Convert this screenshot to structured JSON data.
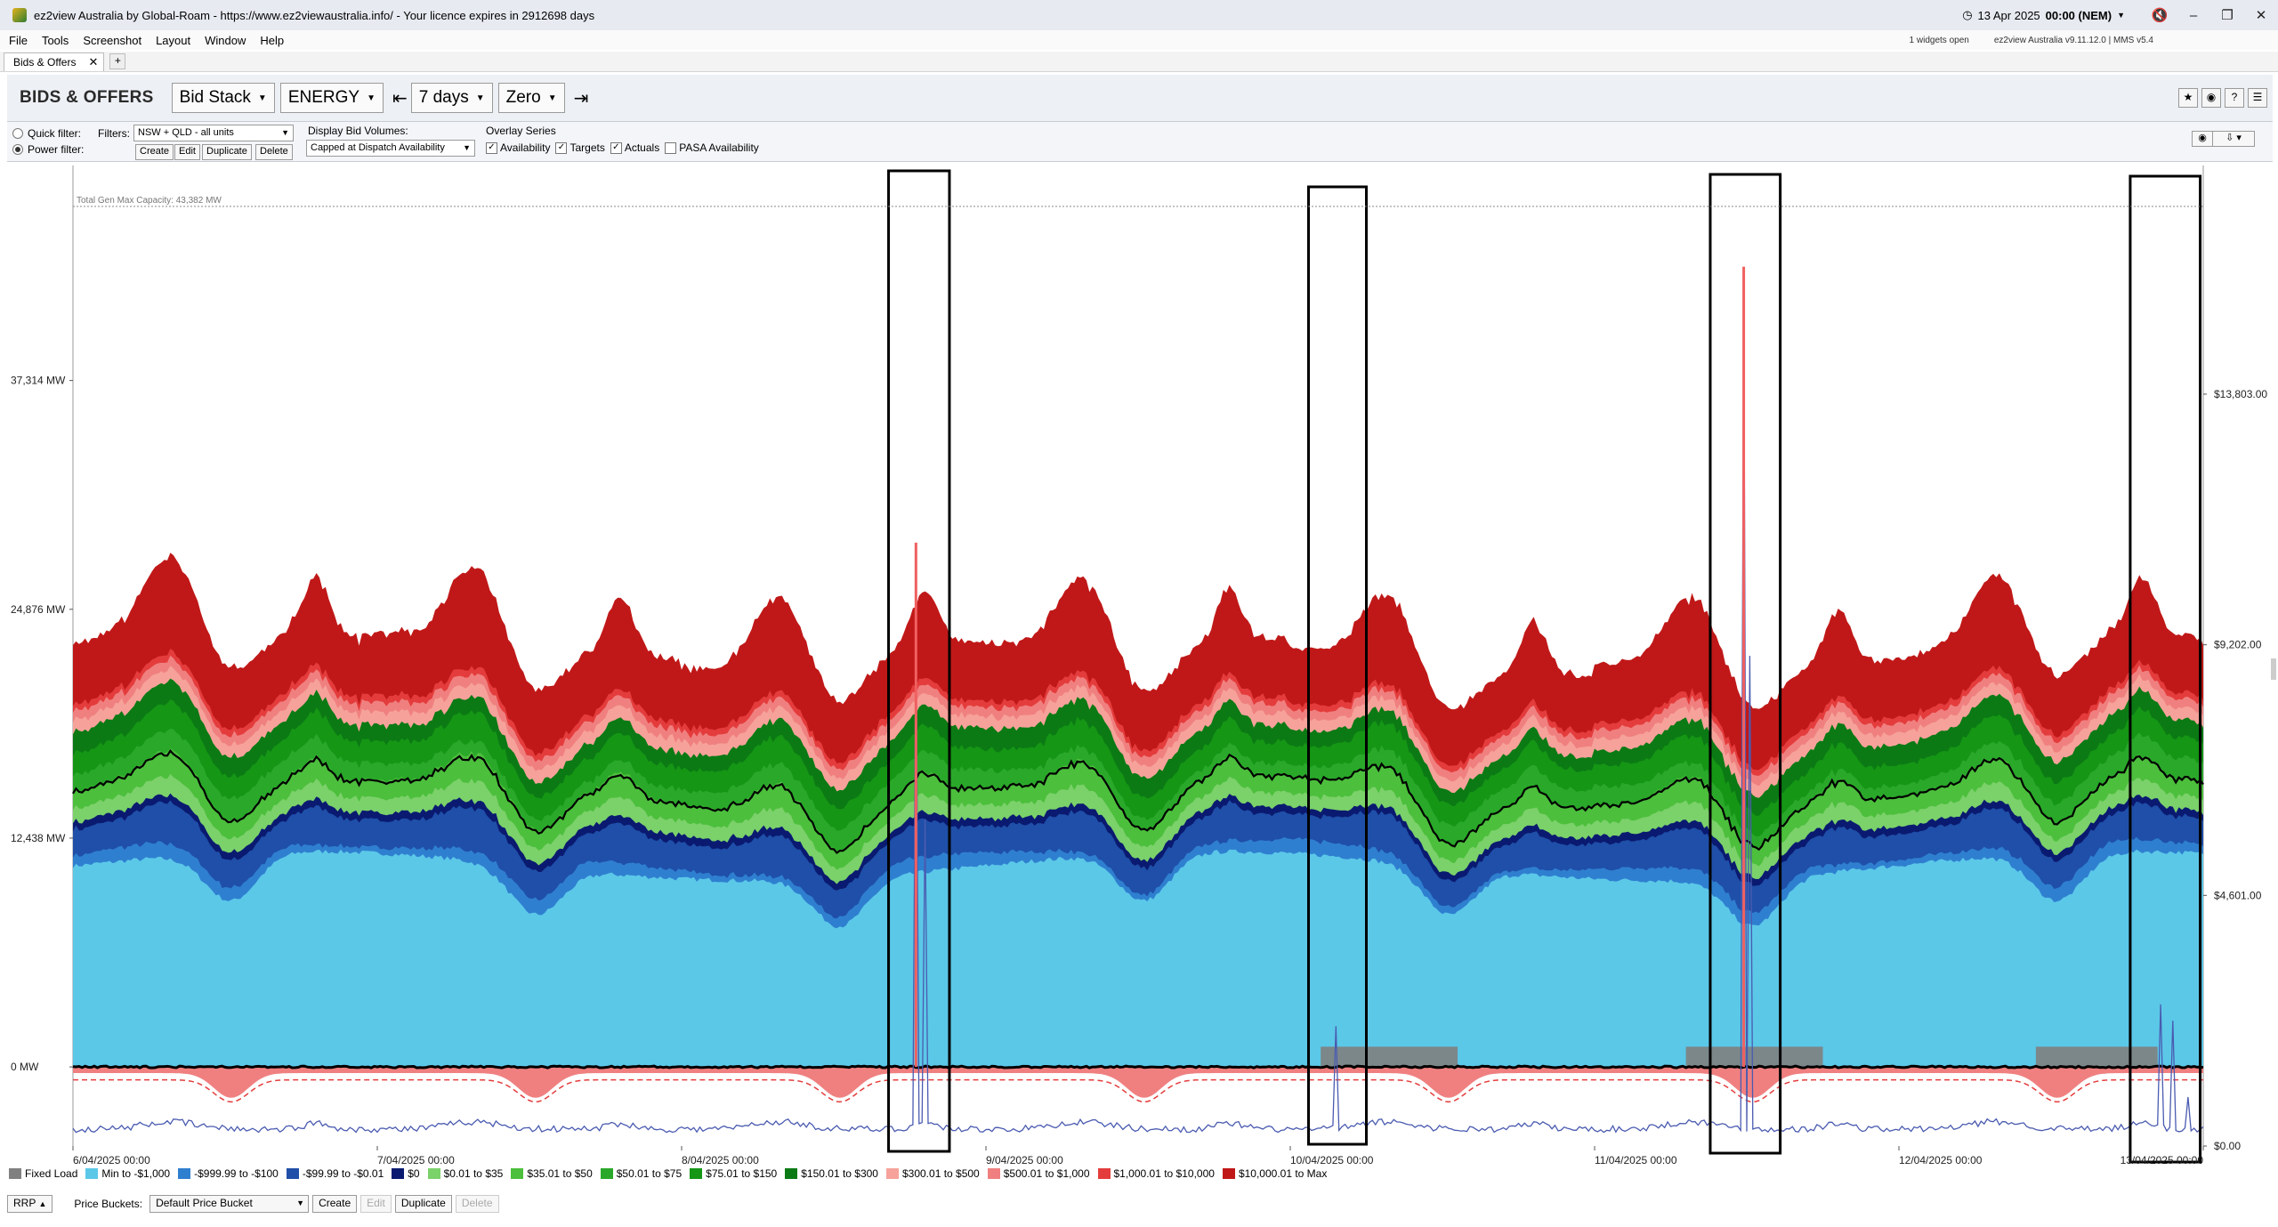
{
  "window": {
    "title": "ez2view Australia by Global-Roam - https://www.ez2viewaustralia.info/ - Your licence expires in 2912698 days",
    "clock_date": "13 Apr 2025",
    "clock_time": "00:00 (NEM)"
  },
  "menu": {
    "items": [
      "File",
      "Tools",
      "Screenshot",
      "Layout",
      "Window",
      "Help"
    ],
    "widgets_open": "1 widgets open",
    "version": "ez2view Australia v9.11.12.0 | MMS v5.4"
  },
  "tab": {
    "label": "Bids & Offers",
    "add": "+"
  },
  "toolbar": {
    "title": "BIDS & OFFERS",
    "view": "Bid Stack",
    "market": "ENERGY",
    "span": "7 days",
    "baseline": "Zero"
  },
  "filters": {
    "quick_label": "Quick filter:",
    "power_label": "Power filter:",
    "filters_label": "Filters:",
    "filter_value": "NSW + QLD - all units",
    "create": "Create",
    "edit": "Edit",
    "duplicate": "Duplicate",
    "delete": "Delete",
    "display_label": "Display Bid Volumes:",
    "display_value": "Capped at Dispatch Availability",
    "overlay_label": "Overlay Series",
    "overlay": [
      "Availability",
      "Targets",
      "Actuals",
      "PASA Availability"
    ]
  },
  "chart_data": {
    "type": "area",
    "annotation": "Total Gen Max Capacity: 43,382 MW",
    "y_ticks": [
      "37,314 MW",
      "24,876 MW",
      "12,438 MW",
      "0 MW"
    ],
    "y2_ticks": [
      "$13,803.00",
      "$9,202.00",
      "$4,601.00",
      "$0.00"
    ],
    "x_ticks": [
      "6/04/2025 00:00",
      "7/04/2025 00:00",
      "8/04/2025 00:00",
      "9/04/2025 00:00",
      "10/04/2025 00:00",
      "11/04/2025 00:00",
      "12/04/2025 00:00",
      "13/04/2025 00:00"
    ],
    "ylim": [
      -4300,
      49000
    ],
    "y2lim": [
      0,
      18000
    ],
    "capacity_mw": 43382,
    "x_days": 7,
    "highlight_boxes_days": [
      [
        2.68,
        2.88
      ],
      [
        4.06,
        4.25
      ],
      [
        5.38,
        5.61
      ],
      [
        6.76,
        6.99
      ]
    ],
    "legend": [
      {
        "label": "Fixed Load",
        "color": "#808080"
      },
      {
        "label": "Min to -$1,000",
        "color": "#5bc8e8"
      },
      {
        "label": "-$999.99 to -$100",
        "color": "#2f7fd0"
      },
      {
        "label": "-$99.99 to -$0.01",
        "color": "#1f4fa8"
      },
      {
        "label": "$0",
        "color": "#0a1a70"
      },
      {
        "label": "$0.01 to $35",
        "color": "#7bd16a"
      },
      {
        "label": "$35.01 to $50",
        "color": "#4cbf3c"
      },
      {
        "label": "$50.01 to $75",
        "color": "#2aa82a"
      },
      {
        "label": "$75.01 to $150",
        "color": "#159615"
      },
      {
        "label": "$150.01 to $300",
        "color": "#0b7a14"
      },
      {
        "label": "$300.01 to $500",
        "color": "#f6a29a"
      },
      {
        "label": "$500.01 to $1,000",
        "color": "#f08080"
      },
      {
        "label": "$1,000.01 to $10,000",
        "color": "#e43c3c"
      },
      {
        "label": "$10,000.01 to Max",
        "color": "#c01818"
      }
    ]
  },
  "bottom": {
    "rrp": "RRP",
    "price_buckets_label": "Price Buckets:",
    "price_bucket": "Default Price Bucket",
    "create": "Create",
    "edit": "Edit",
    "duplicate": "Duplicate",
    "delete": "Delete"
  }
}
